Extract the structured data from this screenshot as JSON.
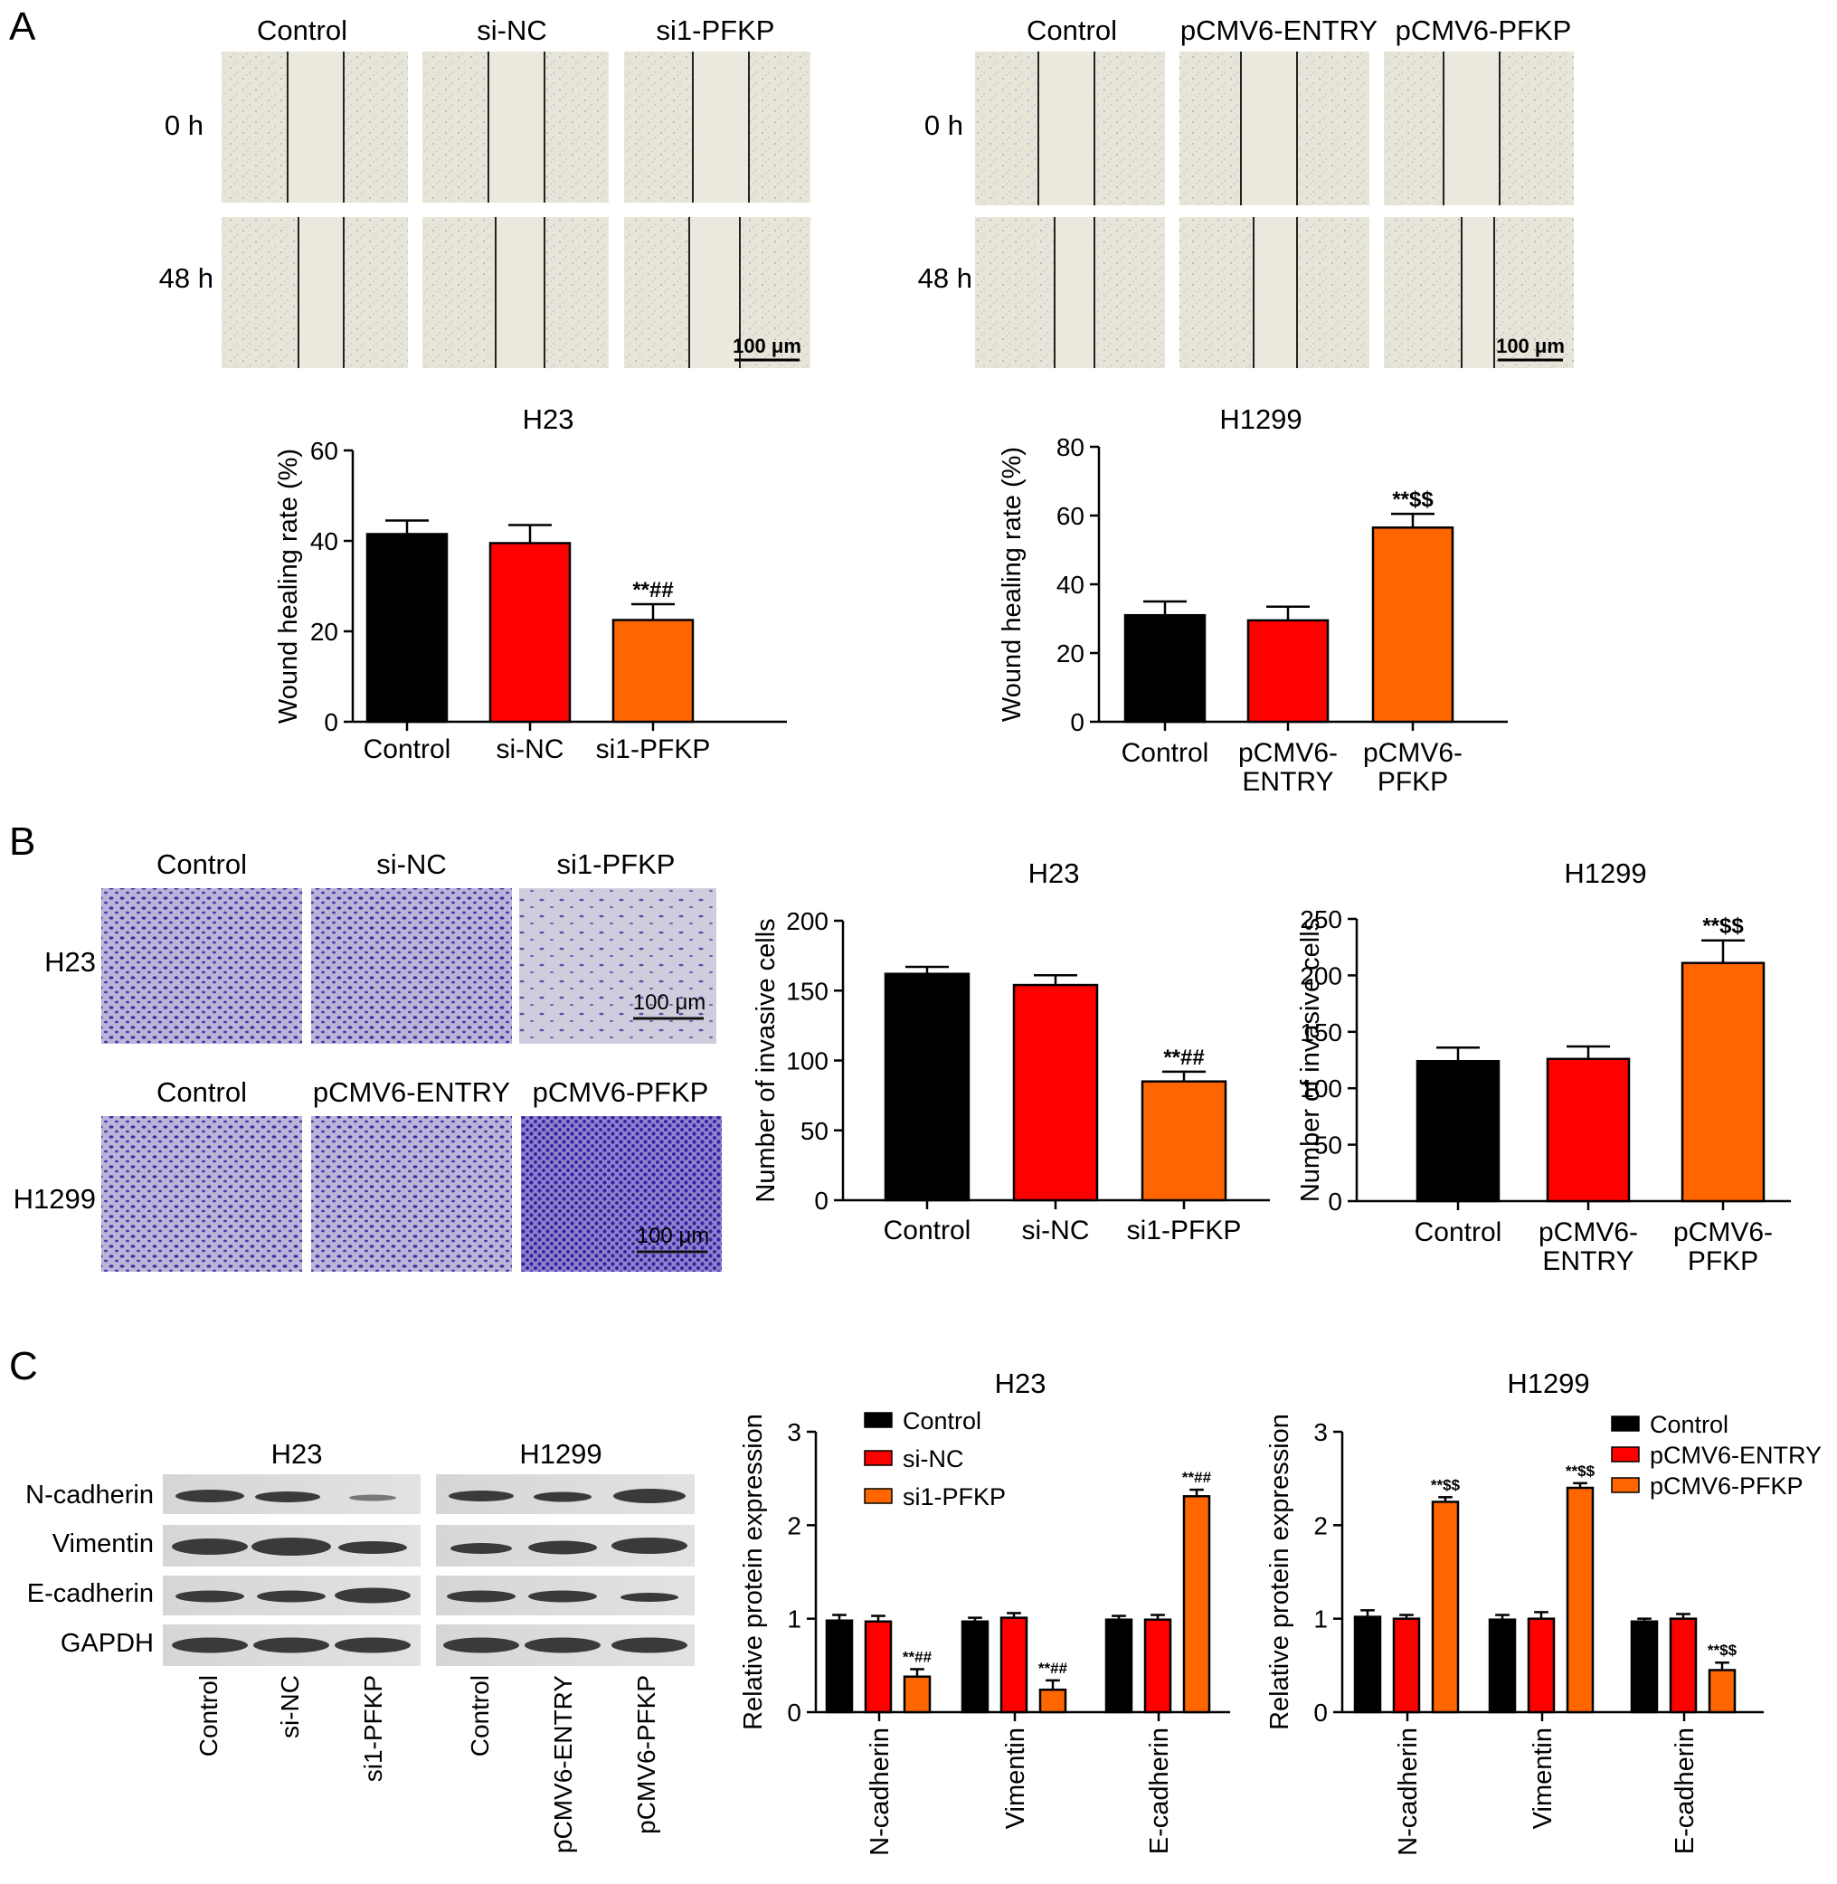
{
  "panel_labels": [
    "A",
    "B",
    "C"
  ],
  "scale_bar": "100 μm",
  "panelA": {
    "timepoints": [
      "0 h",
      "48 h"
    ],
    "h23_groups": [
      "Control",
      "si-NC",
      "si1-PFKP"
    ],
    "h1299_groups": [
      "Control",
      "pCMV6-ENTRY",
      "pCMV6-PFKP"
    ]
  },
  "panelB": {
    "row_labels": [
      "H23",
      "H1299"
    ],
    "h23_groups": [
      "Control",
      "si-NC",
      "si1-PFKP"
    ],
    "h1299_groups": [
      "Control",
      "pCMV6-ENTRY",
      "pCMV6-PFKP"
    ]
  },
  "panelC_blot": {
    "cell_lines": [
      "H23",
      "H1299"
    ],
    "proteins": [
      "N-cadherin",
      "Vimentin",
      "E-cadherin",
      "GAPDH"
    ],
    "lanes": [
      "Control",
      "si-NC",
      "si1-PFKP",
      "Control",
      "pCMV6-ENTRY",
      "pCMV6-PFKP"
    ]
  },
  "colors": {
    "control": "#000000",
    "nc": "#ff0000",
    "treat": "#ff6600"
  },
  "chart_data": [
    {
      "id": "A_H23",
      "type": "bar",
      "title": "H23",
      "ylabel": "Wound healing rate (%)",
      "ylim": [
        0,
        60
      ],
      "yticks": [
        0,
        20,
        40,
        60
      ],
      "categories": [
        "Control",
        "si-NC",
        "si1-PFKP"
      ],
      "values": [
        41.5,
        39.5,
        22.5
      ],
      "errors": [
        3.0,
        4.0,
        3.5
      ],
      "annotations": [
        "",
        "",
        "**##"
      ]
    },
    {
      "id": "A_H1299",
      "type": "bar",
      "title": "H1299",
      "ylabel": "Wound healing rate (%)",
      "ylim": [
        0,
        80
      ],
      "yticks": [
        0,
        20,
        40,
        60,
        80
      ],
      "categories": [
        "Control",
        "pCMV6-ENTRY",
        "pCMV6-PFKP"
      ],
      "values": [
        31,
        29.5,
        56.5
      ],
      "errors": [
        4.0,
        4.0,
        4.0
      ],
      "annotations": [
        "",
        "",
        "**$$"
      ]
    },
    {
      "id": "B_H23",
      "type": "bar",
      "title": "H23",
      "ylabel": "Number of invasive cells",
      "ylim": [
        0,
        200
      ],
      "yticks": [
        0,
        50,
        100,
        150,
        200
      ],
      "categories": [
        "Control",
        "si-NC",
        "si1-PFKP"
      ],
      "values": [
        162,
        154,
        85
      ],
      "errors": [
        5,
        7,
        7
      ],
      "annotations": [
        "",
        "",
        "**##"
      ]
    },
    {
      "id": "B_H1299",
      "type": "bar",
      "title": "H1299",
      "ylabel": "Number of invasive cells",
      "ylim": [
        0,
        250
      ],
      "yticks": [
        0,
        50,
        100,
        150,
        200,
        250
      ],
      "categories": [
        "Control",
        "pCMV6-ENTRY",
        "pCMV6-PFKP"
      ],
      "values": [
        124,
        126,
        211
      ],
      "errors": [
        12,
        11,
        20
      ],
      "annotations": [
        "",
        "",
        "**$$"
      ]
    },
    {
      "id": "C_H23",
      "type": "bar",
      "title": "H23",
      "ylabel": "Relative protein expression",
      "ylim": [
        0,
        3
      ],
      "yticks": [
        0,
        1,
        2,
        3
      ],
      "categories": [
        "N-cadherin",
        "Vimentin",
        "E-cadherin"
      ],
      "series": [
        {
          "name": "Control",
          "values": [
            0.98,
            0.97,
            0.99
          ],
          "errors": [
            0.06,
            0.04,
            0.04
          ]
        },
        {
          "name": "si-NC",
          "values": [
            0.97,
            1.01,
            0.99
          ],
          "errors": [
            0.06,
            0.05,
            0.05
          ]
        },
        {
          "name": "si1-PFKP",
          "values": [
            0.38,
            0.24,
            2.31
          ],
          "errors": [
            0.08,
            0.1,
            0.07
          ]
        }
      ],
      "annotations": [
        [
          "",
          "",
          "**##"
        ],
        [
          "",
          "",
          "**##"
        ],
        [
          "",
          "",
          "**##"
        ]
      ]
    },
    {
      "id": "C_H1299",
      "type": "bar",
      "title": "H1299",
      "ylabel": "Relative protein expression",
      "ylim": [
        0,
        3
      ],
      "yticks": [
        0,
        1,
        2,
        3
      ],
      "categories": [
        "N-cadherin",
        "Vimentin",
        "E-cadherin"
      ],
      "series": [
        {
          "name": "Control",
          "values": [
            1.02,
            0.99,
            0.97
          ],
          "errors": [
            0.07,
            0.05,
            0.03
          ]
        },
        {
          "name": "pCMV6-ENTRY",
          "values": [
            1.0,
            1.0,
            1.0
          ],
          "errors": [
            0.04,
            0.07,
            0.05
          ]
        },
        {
          "name": "pCMV6-PFKP",
          "values": [
            2.25,
            2.4,
            0.45
          ],
          "errors": [
            0.05,
            0.05,
            0.08
          ]
        }
      ],
      "annotations": [
        [
          "",
          "",
          "**$$"
        ],
        [
          "",
          "",
          "**$$"
        ],
        [
          "",
          "",
          "**$$"
        ]
      ]
    }
  ]
}
